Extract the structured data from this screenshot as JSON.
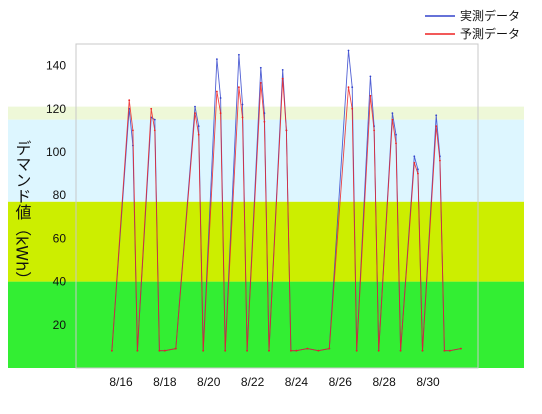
{
  "chart_data": {
    "type": "line",
    "title": "",
    "xlabel": "",
    "ylabel": "デマンド値（kWh）",
    "xlim": [
      "8/15",
      "8/31"
    ],
    "ylim": [
      0,
      150
    ],
    "x_ticks": [
      "8/16",
      "8/18",
      "8/20",
      "8/22",
      "8/24",
      "8/26",
      "8/28",
      "8/30"
    ],
    "y_ticks": [
      20,
      40,
      60,
      80,
      100,
      120,
      140
    ],
    "legend_position": "top-right",
    "grid": false,
    "background_bands": [
      {
        "from": 0,
        "to": 40,
        "color": "#33ee33"
      },
      {
        "from": 40,
        "to": 77,
        "color": "#ccee00"
      },
      {
        "from": 77,
        "to": 115,
        "color": "#ddf6ff"
      },
      {
        "from": 115,
        "to": 121,
        "color": "#eef8d8"
      }
    ],
    "series": [
      {
        "name": "実測データ",
        "color": "#3344cc",
        "x": [
          "8/15 14:00",
          "8/16 09:00",
          "8/16 13:00",
          "8/16 18:00",
          "8/17 09:00",
          "8/17 13:00",
          "8/17 18:00",
          "8/18 00:00",
          "8/18 12:00",
          "8/19 09:00",
          "8/19 13:00",
          "8/19 18:00",
          "8/20 09:00",
          "8/20 13:00",
          "8/20 18:00",
          "8/21 09:00",
          "8/21 13:00",
          "8/21 18:00",
          "8/22 09:00",
          "8/22 13:00",
          "8/22 18:00",
          "8/23 09:00",
          "8/23 13:00",
          "8/23 18:00",
          "8/24 00:00",
          "8/24 12:00",
          "8/25 00:00",
          "8/25 12:00",
          "8/26 09:00",
          "8/26 13:00",
          "8/26 18:00",
          "8/27 09:00",
          "8/27 13:00",
          "8/27 18:00",
          "8/28 09:00",
          "8/28 13:00",
          "8/28 18:00",
          "8/29 09:00",
          "8/29 13:00",
          "8/29 18:00",
          "8/30 09:00",
          "8/30 13:00",
          "8/30 18:00",
          "8/31 00:00",
          "8/31 12:00"
        ],
        "y": [
          8,
          120,
          103,
          8,
          116,
          115,
          8,
          8,
          9,
          121,
          112,
          8,
          143,
          125,
          8,
          145,
          122,
          8,
          139,
          118,
          8,
          138,
          110,
          8,
          8,
          9,
          8,
          9,
          147,
          130,
          8,
          135,
          112,
          8,
          118,
          108,
          8,
          98,
          92,
          8,
          117,
          98,
          8,
          8,
          9
        ]
      },
      {
        "name": "予測データ",
        "color": "#ee2222",
        "x": [
          "8/15 14:00",
          "8/16 09:00",
          "8/16 13:00",
          "8/16 18:00",
          "8/17 09:00",
          "8/17 13:00",
          "8/17 18:00",
          "8/18 00:00",
          "8/18 12:00",
          "8/19 09:00",
          "8/19 13:00",
          "8/19 18:00",
          "8/20 09:00",
          "8/20 13:00",
          "8/20 18:00",
          "8/21 09:00",
          "8/21 13:00",
          "8/21 18:00",
          "8/22 09:00",
          "8/22 13:00",
          "8/22 18:00",
          "8/23 09:00",
          "8/23 13:00",
          "8/23 18:00",
          "8/24 00:00",
          "8/24 12:00",
          "8/25 00:00",
          "8/25 12:00",
          "8/26 09:00",
          "8/26 13:00",
          "8/26 18:00",
          "8/27 09:00",
          "8/27 13:00",
          "8/27 18:00",
          "8/28 09:00",
          "8/28 13:00",
          "8/28 18:00",
          "8/29 09:00",
          "8/29 13:00",
          "8/29 18:00",
          "8/30 09:00",
          "8/30 13:00",
          "8/30 18:00",
          "8/31 00:00",
          "8/31 12:00"
        ],
        "y": [
          8,
          124,
          110,
          8,
          120,
          110,
          8,
          8,
          9,
          118,
          108,
          8,
          128,
          118,
          8,
          130,
          116,
          8,
          132,
          114,
          8,
          134,
          110,
          8,
          8,
          9,
          8,
          9,
          130,
          120,
          8,
          126,
          110,
          8,
          115,
          104,
          8,
          95,
          90,
          8,
          112,
          96,
          8,
          8,
          9
        ]
      }
    ]
  }
}
